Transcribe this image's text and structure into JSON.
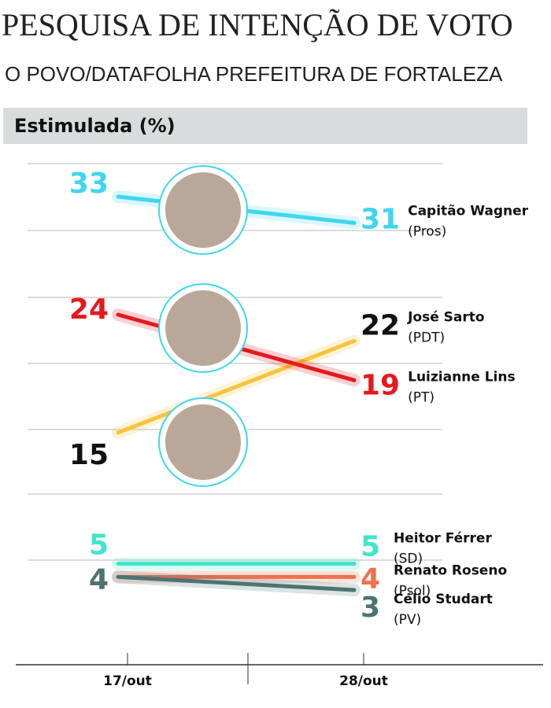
{
  "chart_data": {
    "type": "slope",
    "title": "PESQUISA DE INTENÇÃO DE VOTO",
    "subtitle": "O POVO/DATAFOLHA PREFEITURA DE FORTALEZA",
    "section": "Estimulada (%)",
    "categories": [
      "17/out",
      "28/out"
    ],
    "ylim": [
      0,
      36
    ],
    "series": [
      {
        "name": "Capitão Wagner",
        "party": "(Pros)",
        "color": "#3fd6ef",
        "label_color": "#3fd6ef",
        "values": [
          33,
          31
        ]
      },
      {
        "name": "José Sarto",
        "party": "(PDT)",
        "color": "#f7c43c",
        "label_color": "#111111",
        "values": [
          15,
          22
        ]
      },
      {
        "name": "Luizianne Lins",
        "party": "(PT)",
        "color": "#e5191d",
        "label_color": "#e5191d",
        "values": [
          24,
          19
        ]
      },
      {
        "name": "Heitor Férrer",
        "party": "(SD)",
        "color": "#3fe6c9",
        "label_color": "#3fe6c9",
        "values": [
          5,
          5
        ]
      },
      {
        "name": "Renato Roseno",
        "party": "(Psol)",
        "color": "#f0714f",
        "label_color": "#f0714f",
        "values": [
          4,
          4
        ]
      },
      {
        "name": "Célio Studart",
        "party": "(PV)",
        "color": "#4d7373",
        "label_color": "#4d7373",
        "values": [
          4,
          3
        ]
      }
    ]
  }
}
